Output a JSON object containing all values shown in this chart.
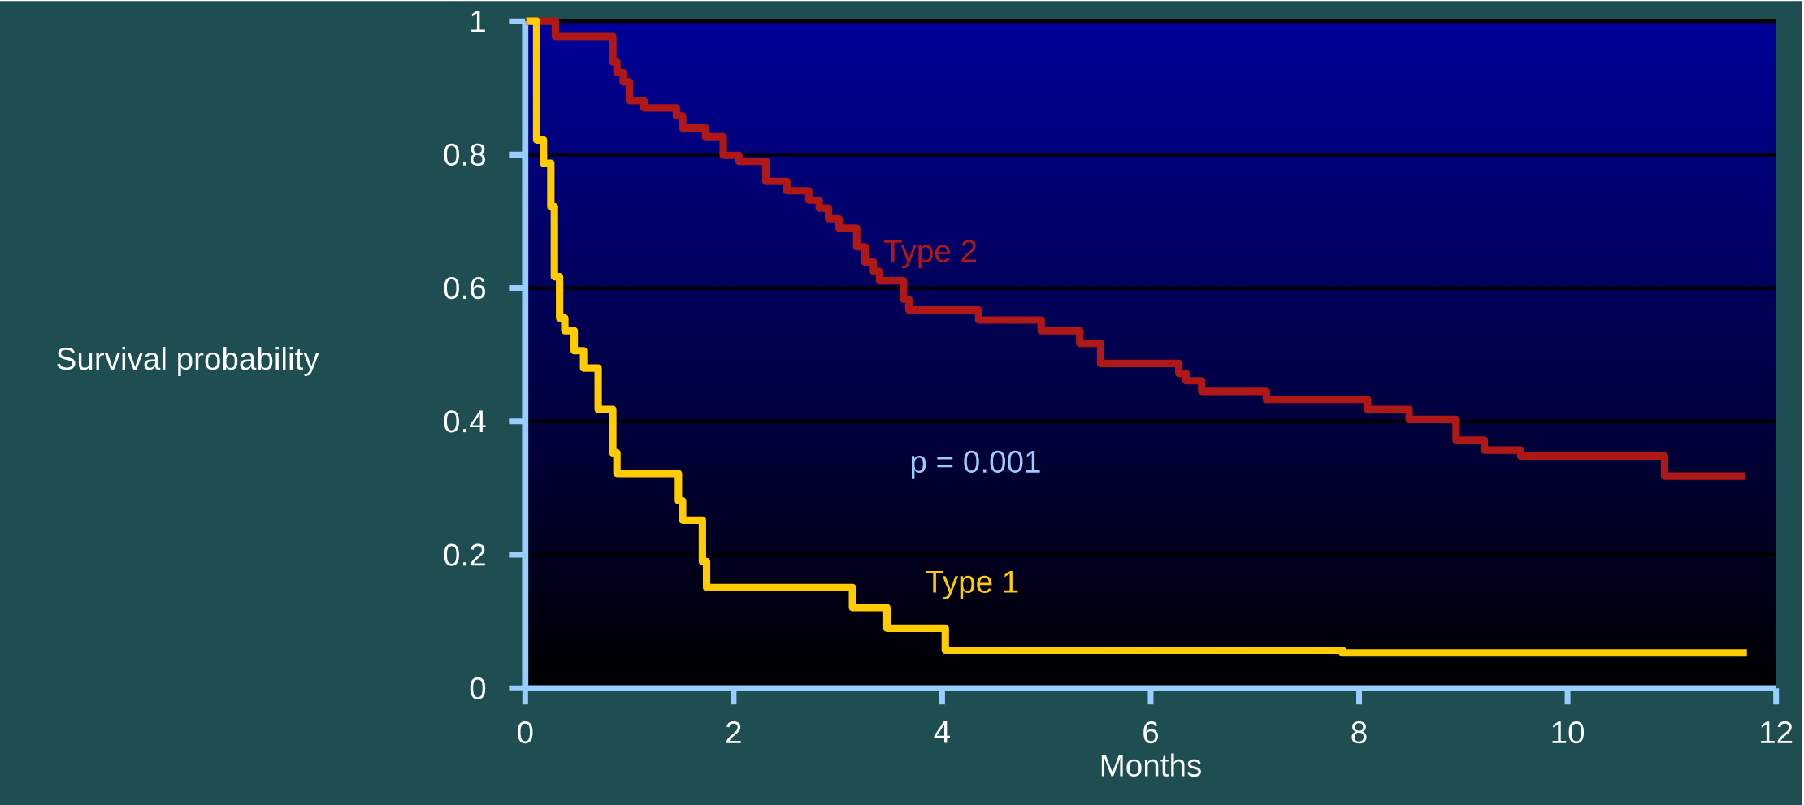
{
  "chart_data": {
    "type": "step",
    "xlabel": "Months",
    "ylabel": "Survival probability",
    "xlim": [
      0,
      12
    ],
    "ylim": [
      0,
      1
    ],
    "xticks": [
      0,
      2,
      4,
      6,
      8,
      10,
      12
    ],
    "yticks": [
      0,
      0.2,
      0.4,
      0.6,
      0.8,
      1
    ],
    "grid": "y",
    "marker": "none",
    "line_style": "solid",
    "annotations": [
      "p = 0.001"
    ],
    "series": [
      {
        "name": "Type 2",
        "color": "#b01818",
        "x": [
          0.01,
          0.29,
          0.84,
          0.88,
          0.94,
          1.0,
          1.14,
          1.45,
          1.51,
          1.73,
          1.9,
          2.05,
          2.31,
          2.51,
          2.72,
          2.82,
          2.91,
          3.01,
          3.18,
          3.26,
          3.34,
          3.4,
          3.63,
          3.68,
          4.35,
          4.95,
          5.32,
          5.52,
          6.27,
          6.34,
          6.49,
          7.11,
          8.08,
          8.48,
          8.93,
          9.2,
          9.55,
          10.93,
          11.7
        ],
        "values": [
          1.0,
          0.977,
          0.939,
          0.923,
          0.909,
          0.881,
          0.87,
          0.858,
          0.84,
          0.827,
          0.799,
          0.79,
          0.76,
          0.746,
          0.732,
          0.72,
          0.704,
          0.69,
          0.662,
          0.639,
          0.625,
          0.611,
          0.583,
          0.567,
          0.552,
          0.536,
          0.517,
          0.487,
          0.472,
          0.461,
          0.445,
          0.433,
          0.418,
          0.403,
          0.372,
          0.357,
          0.348,
          0.318,
          0.318
        ]
      },
      {
        "name": "Type 1",
        "color": "#ffcc00",
        "x": [
          0.01,
          0.11,
          0.175,
          0.246,
          0.28,
          0.33,
          0.38,
          0.47,
          0.56,
          0.7,
          0.84,
          0.88,
          1.47,
          1.51,
          1.7,
          1.74,
          3.14,
          3.47,
          4.03,
          7.84,
          11.72
        ],
        "values": [
          1.0,
          0.822,
          0.787,
          0.722,
          0.617,
          0.555,
          0.536,
          0.506,
          0.48,
          0.418,
          0.353,
          0.322,
          0.281,
          0.252,
          0.19,
          0.151,
          0.121,
          0.09,
          0.057,
          0.053,
          0.053
        ]
      }
    ]
  }
}
